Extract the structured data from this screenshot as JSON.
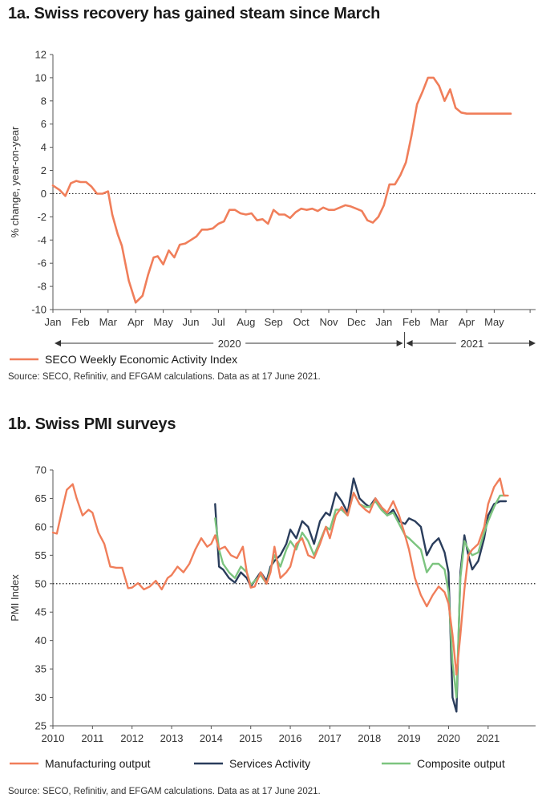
{
  "chart_data": [
    {
      "type": "line",
      "title": "1a. Swiss recovery has gained steam since March",
      "ylabel": "% change, year-on-year",
      "xlabel": "",
      "ylim": [
        -10,
        12
      ],
      "yticks": [
        12,
        10,
        8,
        6,
        4,
        2,
        0,
        -2,
        -4,
        -6,
        -8,
        -10
      ],
      "reference_line": 0,
      "x_domain": [
        0,
        17.5
      ],
      "month_ticks": [
        "Jan",
        "Feb",
        "Mar",
        "Apr",
        "May",
        "Jun",
        "Jul",
        "Aug",
        "Sep",
        "Oct",
        "Nov",
        "Dec",
        "Jan",
        "Feb",
        "Mar",
        "Apr",
        "May"
      ],
      "year_labels": [
        "2020",
        "2021"
      ],
      "legend": [
        "SECO Weekly Economic Activity Index"
      ],
      "series": [
        {
          "name": "SECO Weekly Economic Activity Index",
          "color": "#f07e5a",
          "x": [
            0,
            0.25,
            0.45,
            0.65,
            0.85,
            1.0,
            1.2,
            1.4,
            1.6,
            1.8,
            2.0,
            2.15,
            2.35,
            2.5,
            2.75,
            3.0,
            3.25,
            3.45,
            3.65,
            3.8,
            4.0,
            4.2,
            4.4,
            4.6,
            4.8,
            5.0,
            5.2,
            5.4,
            5.6,
            5.8,
            6.0,
            6.2,
            6.4,
            6.6,
            6.8,
            7.0,
            7.2,
            7.4,
            7.6,
            7.8,
            8.0,
            8.2,
            8.4,
            8.6,
            8.8,
            9.0,
            9.2,
            9.4,
            9.6,
            9.8,
            10.0,
            10.2,
            10.4,
            10.6,
            10.8,
            11.0,
            11.2,
            11.4,
            11.6,
            11.8,
            12.0,
            12.2,
            12.4,
            12.6,
            12.8,
            13.0,
            13.2,
            13.4,
            13.6,
            13.8,
            14.0,
            14.2,
            14.4,
            14.6,
            14.8,
            15.0,
            15.2,
            15.4,
            15.6,
            15.8,
            16.0,
            16.2,
            16.4,
            16.6
          ],
          "values": [
            0.7,
            0.3,
            -0.2,
            0.9,
            1.1,
            1.0,
            1.0,
            0.6,
            0.0,
            0.0,
            0.2,
            -1.8,
            -3.5,
            -4.5,
            -7.5,
            -9.4,
            -8.8,
            -7.0,
            -5.5,
            -5.4,
            -6.1,
            -4.9,
            -5.5,
            -4.4,
            -4.3,
            -4.0,
            -3.7,
            -3.1,
            -3.1,
            -3.0,
            -2.6,
            -2.4,
            -1.4,
            -1.4,
            -1.7,
            -1.8,
            -1.7,
            -2.3,
            -2.2,
            -2.6,
            -1.4,
            -1.8,
            -1.8,
            -2.1,
            -1.6,
            -1.3,
            -1.4,
            -1.3,
            -1.5,
            -1.2,
            -1.4,
            -1.4,
            -1.2,
            -1.0,
            -1.1,
            -1.3,
            -1.5,
            -2.3,
            -2.5,
            -2.0,
            -1.0,
            0.8,
            0.8,
            1.6,
            2.7,
            5.0,
            7.7,
            8.8,
            10.0,
            10.0,
            9.3,
            8.0,
            9.0,
            7.4,
            7.0,
            6.9,
            6.9,
            6.9,
            6.9,
            6.9,
            6.9,
            6.9,
            6.9,
            6.9
          ]
        }
      ],
      "source": "Source: SECO, Refinitiv, and EFGAM calculations. Data as at 17 June 2021."
    },
    {
      "type": "line",
      "title": "1b. Swiss PMI surveys",
      "ylabel": "PMI Index",
      "xlabel": "",
      "ylim": [
        25,
        70
      ],
      "yticks": [
        70,
        65,
        60,
        55,
        50,
        45,
        40,
        35,
        30,
        25
      ],
      "reference_line": 50,
      "x_domain": [
        2010,
        2022.2
      ],
      "xticks": [
        "2010",
        "2011",
        "2012",
        "2013",
        "2014",
        "2015",
        "2016",
        "2017",
        "2018",
        "2019",
        "2020",
        "2021"
      ],
      "legend": [
        "Manufacturing output",
        "Services Activity",
        "Composite output"
      ],
      "series": [
        {
          "name": "Manufacturing output",
          "color": "#f07e5a",
          "x": [
            2010.0,
            2010.1,
            2010.2,
            2010.35,
            2010.5,
            2010.6,
            2010.75,
            2010.9,
            2011.0,
            2011.15,
            2011.3,
            2011.45,
            2011.6,
            2011.75,
            2011.9,
            2012.0,
            2012.15,
            2012.3,
            2012.45,
            2012.6,
            2012.75,
            2012.9,
            2013.0,
            2013.15,
            2013.3,
            2013.45,
            2013.6,
            2013.75,
            2013.9,
            2014.0,
            2014.1,
            2014.2,
            2014.35,
            2014.5,
            2014.65,
            2014.8,
            2014.9,
            2015.0,
            2015.1,
            2015.25,
            2015.4,
            2015.5,
            2015.6,
            2015.75,
            2015.9,
            2016.0,
            2016.15,
            2016.3,
            2016.45,
            2016.6,
            2016.75,
            2016.9,
            2017.0,
            2017.15,
            2017.3,
            2017.45,
            2017.6,
            2017.75,
            2017.9,
            2018.0,
            2018.15,
            2018.3,
            2018.45,
            2018.6,
            2018.75,
            2018.9,
            2019.0,
            2019.15,
            2019.3,
            2019.45,
            2019.6,
            2019.75,
            2019.9,
            2020.0,
            2020.1,
            2020.2,
            2020.3,
            2020.4,
            2020.5,
            2020.6,
            2020.75,
            2020.9,
            2021.0,
            2021.15,
            2021.3,
            2021.4,
            2021.5
          ],
          "values": [
            59,
            58.8,
            62,
            66.5,
            67.5,
            65,
            62,
            63,
            62.5,
            59,
            57,
            53,
            52.8,
            52.8,
            49.2,
            49.3,
            50.1,
            49,
            49.5,
            50.5,
            49,
            51,
            51.5,
            53,
            52,
            53.5,
            56,
            58,
            56.5,
            57,
            58.5,
            56,
            56.5,
            55,
            54.5,
            56.5,
            52,
            49.3,
            49.5,
            52,
            50,
            52,
            56.5,
            51,
            52,
            53,
            57,
            58,
            55,
            54.5,
            57,
            60,
            58,
            62,
            63.5,
            62,
            66,
            64,
            63,
            62.5,
            65,
            63.5,
            62.5,
            64.5,
            62,
            58.5,
            56,
            51,
            48,
            46,
            48,
            49.5,
            48.5,
            46.5,
            41,
            34,
            41,
            49,
            55,
            56,
            57,
            60,
            64,
            67,
            68.5,
            65.5,
            65.5
          ],
          "x_end": 2021.45
        },
        {
          "name": "Services Activity",
          "color": "#2a3d5c",
          "x": [
            2014.1,
            2014.2,
            2014.3,
            2014.45,
            2014.6,
            2014.75,
            2014.9,
            2015.0,
            2015.1,
            2015.25,
            2015.4,
            2015.5,
            2015.6,
            2015.75,
            2015.9,
            2016.0,
            2016.15,
            2016.3,
            2016.45,
            2016.6,
            2016.75,
            2016.9,
            2017.0,
            2017.15,
            2017.3,
            2017.45,
            2017.6,
            2017.75,
            2017.9,
            2018.0,
            2018.15,
            2018.3,
            2018.45,
            2018.6,
            2018.75,
            2018.9,
            2019.0,
            2019.15,
            2019.3,
            2019.45,
            2019.6,
            2019.75,
            2019.9,
            2020.0,
            2020.1,
            2020.2,
            2020.3,
            2020.4,
            2020.5,
            2020.6,
            2020.75,
            2020.9,
            2021.0,
            2021.15,
            2021.3,
            2021.45
          ],
          "values": [
            64,
            53,
            52.5,
            51,
            50.2,
            52,
            51,
            49.5,
            50.5,
            52,
            50.5,
            53,
            54,
            55,
            57,
            59.5,
            58,
            61,
            60,
            57,
            61,
            62.5,
            62,
            66,
            64.5,
            62.5,
            68.5,
            65,
            64,
            63.5,
            65,
            63.5,
            62,
            63,
            61,
            60.5,
            61.5,
            61,
            60,
            55,
            57,
            58,
            55.5,
            52,
            30,
            27.5,
            52,
            58.5,
            55,
            52.5,
            54,
            58,
            62,
            64,
            64.5,
            64.5
          ]
        },
        {
          "name": "Composite output",
          "color": "#7cc47f",
          "x": [
            2014.1,
            2014.2,
            2014.3,
            2014.45,
            2014.6,
            2014.75,
            2014.9,
            2015.0,
            2015.1,
            2015.25,
            2015.4,
            2015.5,
            2015.6,
            2015.75,
            2015.9,
            2016.0,
            2016.15,
            2016.3,
            2016.45,
            2016.6,
            2016.75,
            2016.9,
            2017.0,
            2017.15,
            2017.3,
            2017.45,
            2017.6,
            2017.75,
            2017.9,
            2018.0,
            2018.15,
            2018.3,
            2018.45,
            2018.6,
            2018.75,
            2018.9,
            2019.0,
            2019.15,
            2019.3,
            2019.45,
            2019.6,
            2019.75,
            2019.9,
            2020.0,
            2020.1,
            2020.2,
            2020.3,
            2020.4,
            2020.5,
            2020.6,
            2020.75,
            2020.9,
            2021.0,
            2021.15,
            2021.3,
            2021.45
          ],
          "values": [
            61.5,
            56,
            53.5,
            52,
            51,
            53,
            52,
            49.8,
            50.5,
            51.5,
            50,
            52.5,
            55,
            53,
            56,
            57.5,
            56,
            59,
            57.5,
            55,
            57.5,
            60,
            59.5,
            63,
            63,
            62,
            66,
            64,
            63.5,
            63.5,
            64.5,
            63,
            62,
            62.5,
            60.5,
            58.5,
            58,
            57,
            56,
            52,
            53.5,
            53.5,
            52.5,
            48.5,
            36,
            30,
            51,
            57.5,
            56,
            55,
            55.5,
            59,
            61,
            63.5,
            65.5,
            65.5
          ]
        }
      ],
      "source": "Source: SECO, Refinitiv, and EFGAM calculations. Data as at 17 June 2021."
    }
  ]
}
